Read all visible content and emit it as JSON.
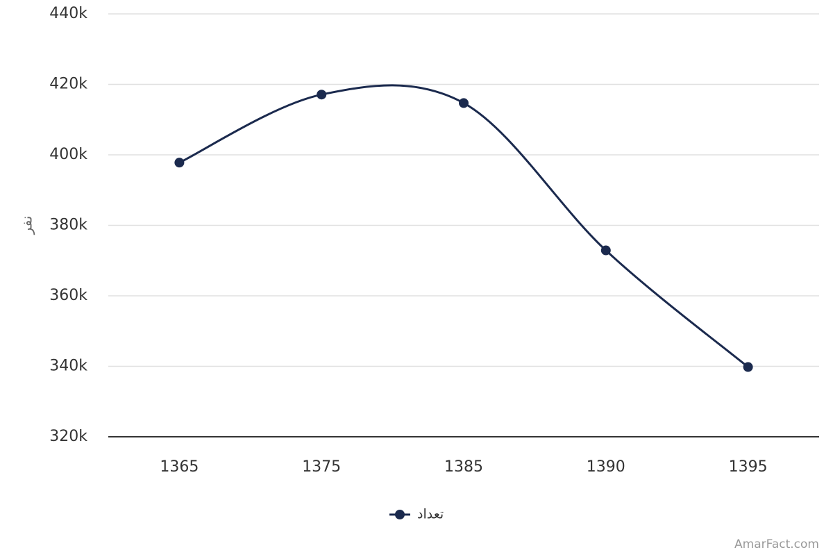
{
  "chart_data": {
    "type": "line",
    "y_label": "نفر",
    "credit": "AmarFact.com",
    "categories": [
      "1365",
      "1375",
      "1385",
      "1390",
      "1395"
    ],
    "series": [
      {
        "name": "تعداد",
        "color": "#1b2a4e",
        "values": [
          397800,
          417100,
          414700,
          372900,
          339800
        ]
      }
    ],
    "ylim": [
      320000,
      440000
    ],
    "yticks": [
      {
        "value": 320000,
        "label": "320k"
      },
      {
        "value": 340000,
        "label": "340k"
      },
      {
        "value": 360000,
        "label": "360k"
      },
      {
        "value": 380000,
        "label": "380k"
      },
      {
        "value": 400000,
        "label": "400k"
      },
      {
        "value": 420000,
        "label": "420k"
      },
      {
        "value": 440000,
        "label": "440k"
      }
    ],
    "grid": true,
    "smooth": true,
    "legend": "bottom"
  }
}
